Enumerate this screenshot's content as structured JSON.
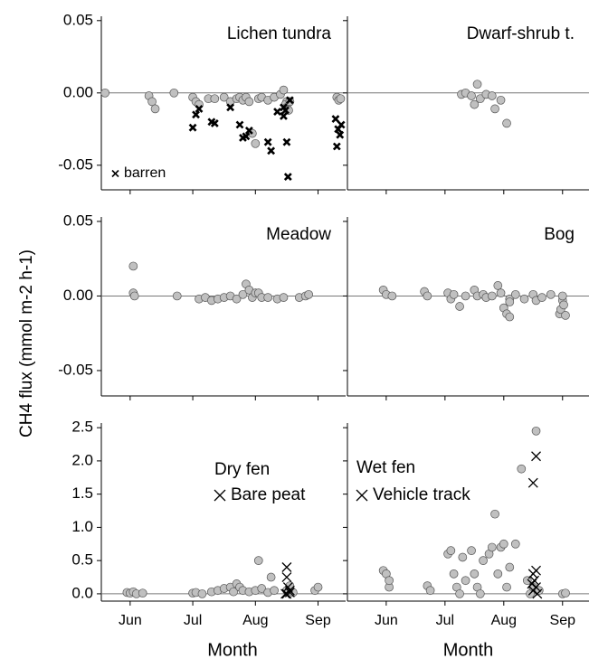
{
  "y_label": "CH4 flux (mmol m-2 h-1)",
  "chart_data": [
    {
      "type": "scatter",
      "title": "Lichen tundra",
      "xlabel": null,
      "xlim": [
        5.54,
        9.44
      ],
      "xticks": [
        {
          "value": 6,
          "label": "Jun"
        },
        {
          "value": 7,
          "label": "Jul"
        },
        {
          "value": 8,
          "label": "Aug"
        },
        {
          "value": 9,
          "label": "Sep"
        }
      ],
      "ylim": [
        -0.067,
        0.053
      ],
      "yticks": [
        0.05,
        {
          "value": 0,
          "label": "0.00"
        },
        {
          "value": -0.05,
          "label": "-0.05"
        }
      ],
      "series": [
        {
          "marker": "circle",
          "color": "#c0c0c0",
          "x": [
            5.6,
            6.3,
            6.35,
            6.4,
            6.7,
            7.0,
            7.05,
            7.1,
            7.25,
            7.35,
            7.5,
            7.6,
            7.7,
            7.75,
            7.8,
            7.85,
            7.9,
            7.95,
            8.0,
            8.05,
            8.1,
            8.2,
            8.3,
            8.4,
            8.5,
            8.45,
            8.48,
            8.5,
            8.53,
            8.55,
            9.3,
            9.33,
            9.36
          ],
          "values": [
            0,
            -0.002,
            -0.006,
            -0.011,
            0,
            -0.003,
            -0.006,
            -0.008,
            -0.004,
            -0.004,
            -0.003,
            -0.006,
            -0.004,
            -0.003,
            -0.005,
            -0.003,
            -0.006,
            -0.028,
            -0.035,
            -0.004,
            -0.003,
            -0.005,
            -0.003,
            -0.001,
            -0.006,
            0.002,
            -0.008,
            -0.01,
            -0.012,
            -0.006,
            -0.003,
            -0.005,
            -0.004
          ]
        },
        {
          "name": "barren",
          "marker": "x",
          "color": "#000000",
          "x": [
            7.0,
            7.05,
            7.1,
            7.3,
            7.35,
            7.6,
            7.75,
            7.8,
            7.85,
            7.9,
            8.2,
            8.25,
            8.35,
            8.45,
            8.45,
            8.48,
            8.5,
            8.52,
            8.55,
            9.28,
            9.3,
            9.32,
            9.35,
            9.37
          ],
          "values": [
            -0.024,
            -0.015,
            -0.011,
            -0.02,
            -0.021,
            -0.01,
            -0.022,
            -0.031,
            -0.03,
            -0.026,
            -0.034,
            -0.04,
            -0.013,
            -0.016,
            -0.01,
            -0.012,
            -0.034,
            -0.058,
            -0.005,
            -0.018,
            -0.037,
            -0.025,
            -0.029,
            -0.022
          ]
        }
      ]
    },
    {
      "type": "scatter",
      "title": "Dwarf-shrub t.",
      "xlabel": null,
      "xlim": [
        5.34,
        9.45
      ],
      "xticks": [
        {
          "value": 6,
          "label": "Jun"
        },
        {
          "value": 7,
          "label": "Jul"
        },
        {
          "value": 8,
          "label": "Aug"
        },
        {
          "value": 9,
          "label": "Sep"
        }
      ],
      "ylim": [
        -0.067,
        0.053
      ],
      "yticks": [
        0.05,
        {
          "value": 0,
          "label": "0.00"
        },
        {
          "value": -0.05,
          "label": "-0.05"
        }
      ],
      "series": [
        {
          "marker": "circle",
          "color": "#c0c0c0",
          "x": [
            7.28,
            7.35,
            7.45,
            7.5,
            7.55,
            7.6,
            7.7,
            7.8,
            7.85,
            7.95,
            8.05
          ],
          "values": [
            -0.001,
            0,
            -0.002,
            -0.008,
            0.006,
            -0.004,
            -0.001,
            -0.002,
            -0.011,
            -0.005,
            -0.021
          ]
        }
      ]
    },
    {
      "type": "scatter",
      "title": "Meadow",
      "xlabel": null,
      "xlim": [
        5.54,
        9.44
      ],
      "xticks": [
        {
          "value": 6,
          "label": "Jun"
        },
        {
          "value": 7,
          "label": "Jul"
        },
        {
          "value": 8,
          "label": "Aug"
        },
        {
          "value": 9,
          "label": "Sep"
        }
      ],
      "ylim": [
        -0.067,
        0.053
      ],
      "yticks": [
        0.05,
        {
          "value": 0,
          "label": "0.00"
        },
        {
          "value": -0.05,
          "label": "-0.05"
        }
      ],
      "series": [
        {
          "marker": "circle",
          "color": "#c0c0c0",
          "x": [
            6.05,
            6.05,
            6.07,
            6.75,
            7.1,
            7.2,
            7.3,
            7.4,
            7.5,
            7.6,
            7.7,
            7.8,
            7.85,
            7.9,
            7.95,
            8.0,
            8.05,
            8.1,
            8.2,
            8.35,
            8.45,
            8.7,
            8.8,
            8.85
          ],
          "values": [
            0.02,
            0.002,
            0,
            0,
            -0.002,
            -0.001,
            -0.003,
            -0.002,
            -0.001,
            0,
            -0.002,
            0.001,
            0.008,
            0.004,
            -0.001,
            0.002,
            0.002,
            -0.001,
            -0.001,
            -0.002,
            -0.001,
            -0.001,
            0,
            0.001
          ]
        }
      ]
    },
    {
      "type": "scatter",
      "title": "Bog",
      "xlabel": null,
      "xlim": [
        5.34,
        9.45
      ],
      "xticks": [
        {
          "value": 6,
          "label": "Jun"
        },
        {
          "value": 7,
          "label": "Jul"
        },
        {
          "value": 8,
          "label": "Aug"
        },
        {
          "value": 9,
          "label": "Sep"
        }
      ],
      "ylim": [
        -0.067,
        0.053
      ],
      "yticks": [
        0.05,
        {
          "value": 0,
          "label": "0.00"
        },
        {
          "value": -0.05,
          "label": "-0.05"
        }
      ],
      "series": [
        {
          "marker": "circle",
          "color": "#c0c0c0",
          "x": [
            5.95,
            6.0,
            6.1,
            6.65,
            6.7,
            7.05,
            7.1,
            7.15,
            7.25,
            7.35,
            7.5,
            7.55,
            7.65,
            7.7,
            7.8,
            7.9,
            7.95,
            8.1,
            8.2,
            8.35,
            8.5,
            8.55,
            8.65,
            8.8,
            8.0,
            8.05,
            8.1,
            8.1,
            8.95,
            8.97,
            9.0,
            9.0,
            9.02,
            9.05
          ],
          "values": [
            0.004,
            0.001,
            0,
            0.003,
            0,
            0.002,
            -0.002,
            0.001,
            -0.007,
            0,
            0.004,
            0,
            0.001,
            -0.001,
            0,
            0.007,
            0.002,
            -0.002,
            0.001,
            -0.002,
            0.001,
            -0.003,
            -0.001,
            0.001,
            -0.008,
            -0.012,
            -0.004,
            -0.014,
            -0.012,
            -0.009,
            -0.003,
            0,
            -0.006,
            -0.013
          ]
        }
      ]
    },
    {
      "type": "scatter",
      "title": "Dry fen",
      "xlabel": "Month",
      "xlim": [
        5.54,
        9.44
      ],
      "xticks": [
        {
          "value": 6,
          "label": "Jun"
        },
        {
          "value": 7,
          "label": "Jul"
        },
        {
          "value": 8,
          "label": "Aug"
        },
        {
          "value": 9,
          "label": "Sep"
        }
      ],
      "ylim": [
        -0.11,
        2.57
      ],
      "yticks": [
        {
          "value": 0,
          "label": "0.0"
        },
        0.5,
        {
          "value": 1,
          "label": "1.0"
        },
        1.5,
        {
          "value": 2,
          "label": "2.0"
        },
        2.5
      ],
      "series": [
        {
          "marker": "circle",
          "color": "#c0c0c0",
          "x": [
            5.95,
            6.0,
            6.05,
            6.1,
            6.2,
            7.0,
            7.05,
            7.15,
            7.3,
            7.4,
            7.5,
            7.6,
            7.65,
            7.7,
            7.75,
            7.8,
            7.9,
            8.0,
            8.05,
            8.1,
            8.2,
            8.25,
            8.3,
            8.5,
            8.55,
            8.6,
            8.95,
            9.0
          ],
          "values": [
            0.02,
            0.01,
            0.03,
            0,
            0.01,
            0.01,
            0.02,
            0,
            0.03,
            0.05,
            0.08,
            0.1,
            0.03,
            0.15,
            0.1,
            0.05,
            0.03,
            0.05,
            0.5,
            0.08,
            0.02,
            0.25,
            0.05,
            0.05,
            0.12,
            0.02,
            0.05,
            0.1
          ]
        },
        {
          "name": "Bare peat",
          "marker": "x",
          "color": "#000000",
          "x": [
            8.5,
            8.5,
            8.52,
            8.55,
            8.48,
            8.55,
            8.5
          ],
          "values": [
            0.4,
            0.25,
            0.1,
            0.02,
            0,
            0.05,
            0
          ]
        }
      ]
    },
    {
      "type": "scatter",
      "title": "Wet fen",
      "xlabel": "Month",
      "xlim": [
        5.34,
        9.45
      ],
      "xticks": [
        {
          "value": 6,
          "label": "Jun"
        },
        {
          "value": 7,
          "label": "Jul"
        },
        {
          "value": 8,
          "label": "Aug"
        },
        {
          "value": 9,
          "label": "Sep"
        }
      ],
      "ylim": [
        -0.11,
        2.57
      ],
      "yticks": [
        {
          "value": 0,
          "label": "0.0"
        },
        0.5,
        {
          "value": 1,
          "label": "1.0"
        },
        1.5,
        {
          "value": 2,
          "label": "2.0"
        },
        2.5
      ],
      "series": [
        {
          "marker": "circle",
          "color": "#c0c0c0",
          "x": [
            5.95,
            6.0,
            6.05,
            6.05,
            6.7,
            6.75,
            7.05,
            7.1,
            7.15,
            7.2,
            7.25,
            7.3,
            7.35,
            7.45,
            7.5,
            7.55,
            7.6,
            7.65,
            7.75,
            7.8,
            7.85,
            7.9,
            7.95,
            8.0,
            8.05,
            8.1,
            8.2,
            8.3,
            8.4,
            8.45,
            8.5,
            8.55,
            8.6,
            9.0,
            9.05
          ],
          "values": [
            0.35,
            0.3,
            0.1,
            0.2,
            0.12,
            0.05,
            0.6,
            0.65,
            0.3,
            0.1,
            0,
            0.55,
            0.2,
            0.65,
            0.3,
            0.1,
            0,
            0.5,
            0.6,
            0.7,
            1.2,
            0.3,
            0.7,
            0.75,
            0.1,
            0.4,
            0.75,
            1.88,
            0.2,
            0,
            0.1,
            2.45,
            0.05,
            0,
            0.01
          ]
        },
        {
          "name": "Vehicle track",
          "marker": "x",
          "color": "#000000",
          "x": [
            8.55,
            8.5,
            8.55,
            8.5,
            8.52,
            8.55,
            8.5,
            8.57,
            8.48
          ],
          "values": [
            2.07,
            1.67,
            0.35,
            0.3,
            0.2,
            0.1,
            0.05,
            0,
            0.15
          ]
        }
      ]
    }
  ]
}
